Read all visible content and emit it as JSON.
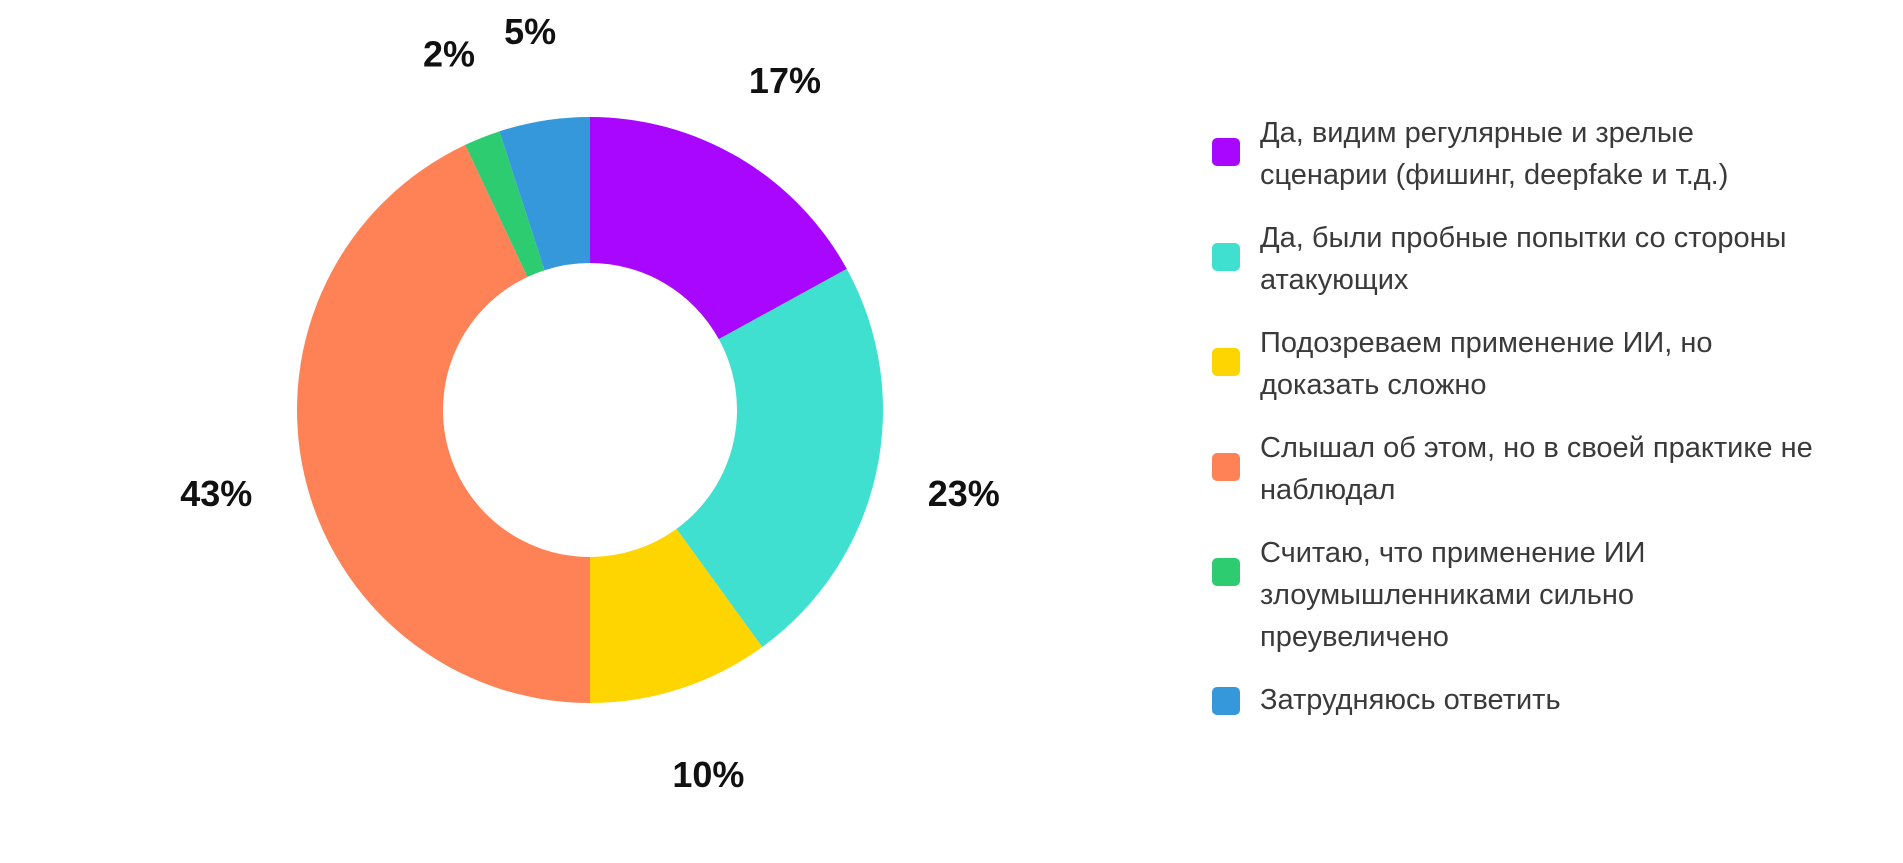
{
  "chart_data": {
    "type": "pie",
    "donut": true,
    "series": [
      {
        "label": "Да, видим регулярные и зрелые сценарии (фишинг, deepfake и т.д.)",
        "value": 17,
        "value_label": "17%",
        "color": "#a806ff"
      },
      {
        "label": "Да, были пробные попытки со стороны атакующих",
        "value": 23,
        "value_label": "23%",
        "color": "#40e0d0"
      },
      {
        "label": "Подозреваем применение ИИ, но доказать сложно",
        "value": 10,
        "value_label": "10%",
        "color": "#ffd500"
      },
      {
        "label": "Слышал об этом, но в своей практике не наблюдал",
        "value": 43,
        "value_label": "43%",
        "color": "#ff8256"
      },
      {
        "label": "Считаю, что применение ИИ злоумышленниками сильно преувеличено",
        "value": 2,
        "value_label": "2%",
        "color": "#2ecc71"
      },
      {
        "label": "Затрудняюсь ответить",
        "value": 5,
        "value_label": "5%",
        "color": "#3498db"
      }
    ],
    "legend_position": "right"
  }
}
